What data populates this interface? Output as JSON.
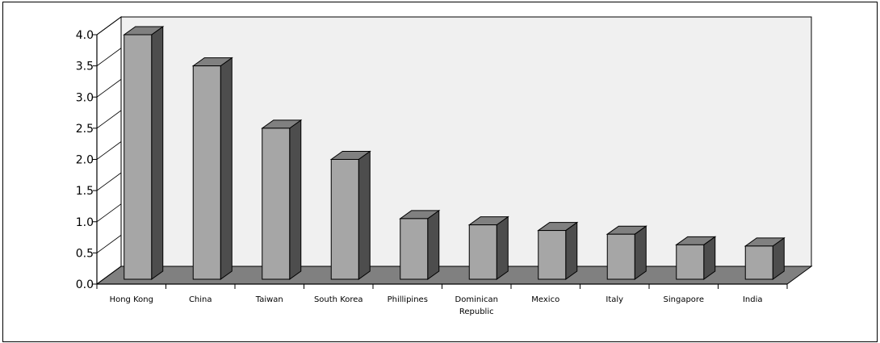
{
  "chart_data": {
    "type": "bar",
    "title": "",
    "xlabel": "",
    "ylabel": "",
    "categories": [
      [
        "Hong Kong"
      ],
      [
        "China"
      ],
      [
        "Taiwan"
      ],
      [
        "South Korea"
      ],
      [
        "Phillipines"
      ],
      [
        "Dominican",
        "Republic"
      ],
      [
        "Mexico"
      ],
      [
        "Italy"
      ],
      [
        "Singapore"
      ],
      [
        "India"
      ]
    ],
    "values": [
      4.0,
      3.5,
      2.5,
      2.0,
      1.05,
      0.95,
      0.86,
      0.8,
      0.63,
      0.61
    ],
    "ylim": [
      0,
      4.0
    ],
    "yticks": [
      "0.0",
      "0.5",
      "1.0",
      "1.5",
      "2.0",
      "2.5",
      "3.0",
      "3.5",
      "4.0"
    ],
    "style": "3d-column",
    "grid": false,
    "legend": "none",
    "colors": {
      "bar_front": "#a6a6a6",
      "bar_top": "#808080",
      "bar_side": "#4d4d4d",
      "floor": "#808080",
      "back_wall": "#f0f0f0"
    }
  }
}
